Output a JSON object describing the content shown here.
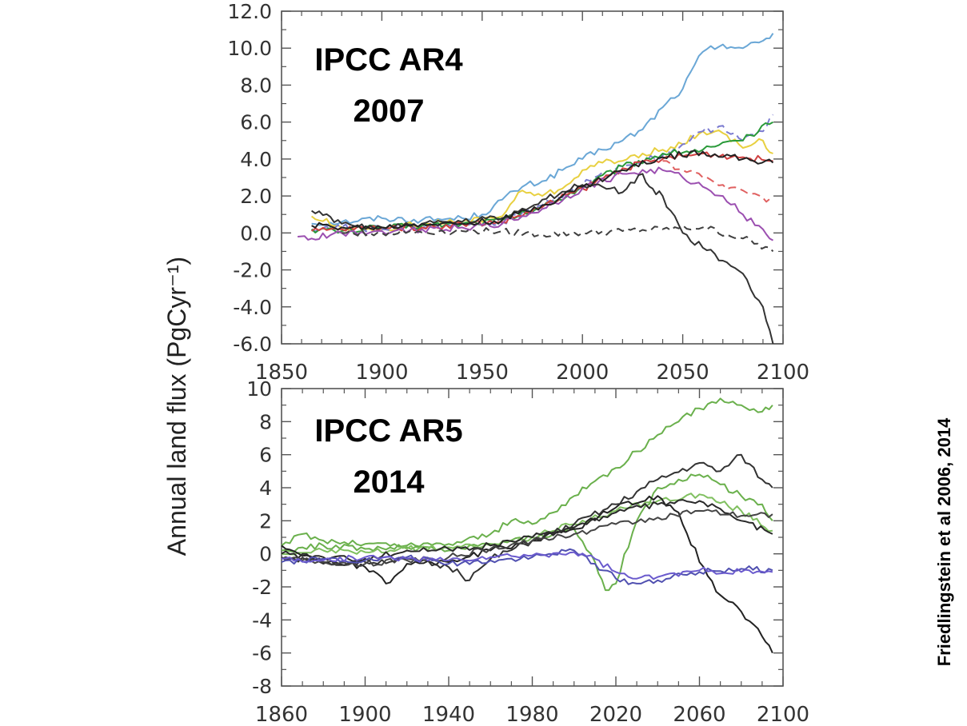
{
  "ylabel": "Annual land flux (PgCyr⁻¹)",
  "citation": "Friedlingstein et al 2006, 2014",
  "chart_data": [
    {
      "type": "line",
      "title_line1": "IPCC AR4",
      "title_line2": "2007",
      "xlim": [
        1850,
        2100
      ],
      "ylim": [
        -6.0,
        12.0
      ],
      "x_ticks": [
        "1850",
        "1900",
        "1950",
        "2000",
        "2050",
        "2100"
      ],
      "y_ticks": [
        "12.0",
        "10.0",
        "8.0",
        "6.0",
        "4.0",
        "2.0",
        "0.0",
        "-2.0",
        "-4.0",
        "-6.0"
      ],
      "series": [
        {
          "color": "#6aa7d6",
          "dash": false,
          "x": [
            1865,
            1880,
            1900,
            1920,
            1940,
            1950,
            1960,
            1970,
            1980,
            1990,
            2000,
            2010,
            2020,
            2030,
            2040,
            2050,
            2060,
            2070,
            2080,
            2090,
            2095
          ],
          "y": [
            0.5,
            0.6,
            0.8,
            0.7,
            0.8,
            1.0,
            1.8,
            2.5,
            2.8,
            3.4,
            4.0,
            4.5,
            5.0,
            5.6,
            6.8,
            7.8,
            9.8,
            10.2,
            10.0,
            10.4,
            10.8
          ]
        },
        {
          "color": "#e8d040",
          "dash": false,
          "x": [
            1865,
            1880,
            1900,
            1920,
            1940,
            1960,
            1970,
            1980,
            1990,
            2000,
            2010,
            2020,
            2030,
            2040,
            2050,
            2060,
            2070,
            2080,
            2090,
            2095
          ],
          "y": [
            0.9,
            0.3,
            0.2,
            0.5,
            0.6,
            0.9,
            2.3,
            2.0,
            2.4,
            3.4,
            3.8,
            3.9,
            4.3,
            4.5,
            4.8,
            5.5,
            5.4,
            4.6,
            5.0,
            4.3
          ]
        },
        {
          "color": "#7b7bd0",
          "dash": true,
          "x": [
            1865,
            1880,
            1900,
            1920,
            1940,
            1960,
            1980,
            2000,
            2020,
            2040,
            2050,
            2060,
            2070,
            2080,
            2090,
            2095
          ],
          "y": [
            0.2,
            0.3,
            0.2,
            0.4,
            0.5,
            0.6,
            1.5,
            2.6,
            3.6,
            4.2,
            4.8,
            5.5,
            5.8,
            5.0,
            5.5,
            6.4
          ]
        },
        {
          "color": "#2a9a3a",
          "dash": false,
          "x": [
            1865,
            1880,
            1900,
            1920,
            1940,
            1960,
            1980,
            2000,
            2020,
            2040,
            2060,
            2080,
            2095
          ],
          "y": [
            0.2,
            0.1,
            0.3,
            0.4,
            0.5,
            0.7,
            1.4,
            2.5,
            3.6,
            4.3,
            4.5,
            5.0,
            6.0
          ]
        },
        {
          "color": "#d04040",
          "dash": false,
          "x": [
            1865,
            1880,
            1900,
            1920,
            1940,
            1960,
            1980,
            2000,
            2020,
            2040,
            2060,
            2080,
            2095
          ],
          "y": [
            0.1,
            0.2,
            0.3,
            0.3,
            0.5,
            0.6,
            1.4,
            2.4,
            3.5,
            4.0,
            4.3,
            4.1,
            3.9
          ]
        },
        {
          "color": "#e06060",
          "dash": true,
          "x": [
            2040,
            2050,
            2060,
            2070,
            2080,
            2090,
            2095
          ],
          "y": [
            3.9,
            3.4,
            3.0,
            2.6,
            2.3,
            1.9,
            1.7
          ]
        },
        {
          "color": "#9b4fb0",
          "dash": false,
          "x": [
            1858,
            1865,
            1880,
            1900,
            1920,
            1940,
            1960,
            1980,
            2000,
            2020,
            2040,
            2050,
            2060,
            2070,
            2080,
            2090,
            2095
          ],
          "y": [
            -0.2,
            -0.3,
            0.0,
            0.1,
            0.2,
            0.3,
            0.5,
            1.3,
            2.4,
            3.2,
            3.4,
            3.0,
            2.5,
            2.0,
            1.0,
            0.2,
            -0.4
          ]
        },
        {
          "color": "#404040",
          "dash": true,
          "x": [
            1880,
            1900,
            1940,
            1960,
            1980,
            2000,
            2020,
            2040,
            2060,
            2080,
            2095
          ],
          "y": [
            0.0,
            0.0,
            0.1,
            0.1,
            -0.1,
            0.0,
            0.1,
            0.2,
            0.3,
            -0.3,
            -1.0
          ]
        },
        {
          "color": "#333333",
          "dash": false,
          "x": [
            1865,
            1880,
            1900,
            1920,
            1940,
            1960,
            1980,
            2000,
            2010,
            2020,
            2030,
            2035,
            2040,
            2050,
            2060,
            2070,
            2080,
            2090,
            2095
          ],
          "y": [
            1.2,
            0.5,
            0.3,
            0.5,
            0.6,
            0.8,
            1.8,
            2.6,
            2.5,
            2.2,
            3.2,
            2.4,
            2.0,
            0.0,
            -0.8,
            -1.5,
            -2.2,
            -4.0,
            -6.0
          ]
        },
        {
          "color": "#222222",
          "dash": false,
          "x": [
            1865,
            1880,
            1900,
            1920,
            1940,
            1960,
            1980,
            2000,
            2020,
            2040,
            2060,
            2080,
            2095
          ],
          "y": [
            0.4,
            0.3,
            0.3,
            0.5,
            0.5,
            0.7,
            1.5,
            2.5,
            3.4,
            4.1,
            4.4,
            4.0,
            3.8
          ]
        }
      ]
    },
    {
      "type": "line",
      "title_line1": "IPCC AR5",
      "title_line2": "2014",
      "xlim": [
        1860,
        2100
      ],
      "ylim": [
        -8,
        10
      ],
      "x_ticks": [
        "1860",
        "1900",
        "1940",
        "1980",
        "2020",
        "2060",
        "2100"
      ],
      "y_ticks": [
        "10",
        "8",
        "6",
        "4",
        "2",
        "0",
        "-2",
        "-4",
        "-6",
        "-8"
      ],
      "series": [
        {
          "color": "#6ab04c",
          "dash": false,
          "x": [
            1860,
            1870,
            1880,
            1900,
            1920,
            1940,
            1960,
            1970,
            1980,
            1990,
            2000,
            2010,
            2020,
            2030,
            2040,
            2050,
            2060,
            2070,
            2080,
            2090,
            2095
          ],
          "y": [
            0.5,
            1.2,
            0.8,
            0.6,
            0.5,
            0.6,
            1.2,
            2.0,
            1.8,
            2.5,
            3.5,
            4.4,
            5.2,
            6.2,
            7.2,
            8.0,
            8.8,
            9.4,
            9.0,
            8.6,
            9.0
          ]
        },
        {
          "color": "#6ab04c",
          "dash": false,
          "x": [
            1860,
            1880,
            1900,
            1920,
            1940,
            1960,
            1980,
            2000,
            2010,
            2015,
            2020,
            2030,
            2040,
            2050,
            2060,
            2070,
            2080,
            2090,
            2095
          ],
          "y": [
            0.2,
            0.5,
            0.3,
            0.4,
            0.2,
            0.6,
            1.0,
            1.5,
            -0.5,
            -2.2,
            -1.8,
            2.0,
            4.0,
            4.5,
            4.8,
            4.2,
            3.5,
            3.0,
            2.0
          ]
        },
        {
          "color": "#80c060",
          "dash": false,
          "x": [
            1860,
            1880,
            1900,
            1920,
            1940,
            1960,
            1980,
            2000,
            2020,
            2040,
            2060,
            2080,
            2095
          ],
          "y": [
            0.0,
            0.2,
            0.1,
            0.3,
            0.4,
            0.5,
            1.0,
            1.8,
            2.6,
            3.2,
            3.6,
            2.6,
            1.4
          ]
        },
        {
          "color": "#222222",
          "dash": false,
          "x": [
            1860,
            1880,
            1900,
            1910,
            1920,
            1940,
            1960,
            1980,
            2000,
            2020,
            2040,
            2050,
            2060,
            2070,
            2080,
            2090,
            2095
          ],
          "y": [
            0.5,
            -0.5,
            -0.8,
            -1.8,
            -0.6,
            -0.5,
            0.2,
            0.8,
            1.5,
            2.8,
            3.5,
            2.5,
            -0.5,
            -2.5,
            -3.5,
            -5.0,
            -6.0
          ]
        },
        {
          "color": "#333333",
          "dash": false,
          "x": [
            1860,
            1880,
            1900,
            1920,
            1940,
            1950,
            1960,
            1980,
            2000,
            2020,
            2040,
            2060,
            2070,
            2080,
            2090,
            2095
          ],
          "y": [
            -0.2,
            -0.6,
            -0.5,
            -0.3,
            -0.8,
            -1.6,
            -0.3,
            0.8,
            1.8,
            3.0,
            4.5,
            5.5,
            5.0,
            6.0,
            4.5,
            4.0
          ]
        },
        {
          "color": "#2a2a2a",
          "dash": false,
          "x": [
            1860,
            1880,
            1900,
            1920,
            1940,
            1960,
            1980,
            2000,
            2020,
            2040,
            2060,
            2080,
            2095
          ],
          "y": [
            0.0,
            -0.2,
            -0.3,
            0.2,
            0.3,
            0.5,
            1.0,
            1.6,
            2.5,
            3.0,
            3.2,
            2.0,
            1.2
          ]
        },
        {
          "color": "#444444",
          "dash": false,
          "x": [
            1860,
            1880,
            1900,
            1920,
            1940,
            1960,
            1980,
            2000,
            2020,
            2040,
            2060,
            2080,
            2095
          ],
          "y": [
            -0.3,
            -0.5,
            -0.6,
            -0.4,
            -0.2,
            0.3,
            0.8,
            1.2,
            1.8,
            2.2,
            2.6,
            2.3,
            2.4
          ]
        },
        {
          "color": "#5050b0",
          "dash": false,
          "x": [
            1860,
            1880,
            1900,
            1920,
            1940,
            1960,
            1980,
            2000,
            2010,
            2020,
            2030,
            2040,
            2060,
            2080,
            2095
          ],
          "y": [
            -0.5,
            -0.3,
            -0.4,
            -0.2,
            -0.6,
            -0.4,
            -0.2,
            0.2,
            -0.6,
            -1.5,
            -1.8,
            -1.6,
            -1.1,
            -0.9,
            -1.0
          ]
        },
        {
          "color": "#6a5acd",
          "dash": false,
          "x": [
            1860,
            1880,
            1900,
            1920,
            1940,
            1960,
            1980,
            2000,
            2010,
            2020,
            2030,
            2040,
            2060,
            2080,
            2095
          ],
          "y": [
            -0.3,
            -0.4,
            -0.2,
            -0.3,
            -0.4,
            -0.2,
            -0.1,
            0.1,
            -0.3,
            -1.1,
            -1.5,
            -1.4,
            -1.0,
            -1.1,
            -1.1
          ]
        }
      ]
    }
  ]
}
